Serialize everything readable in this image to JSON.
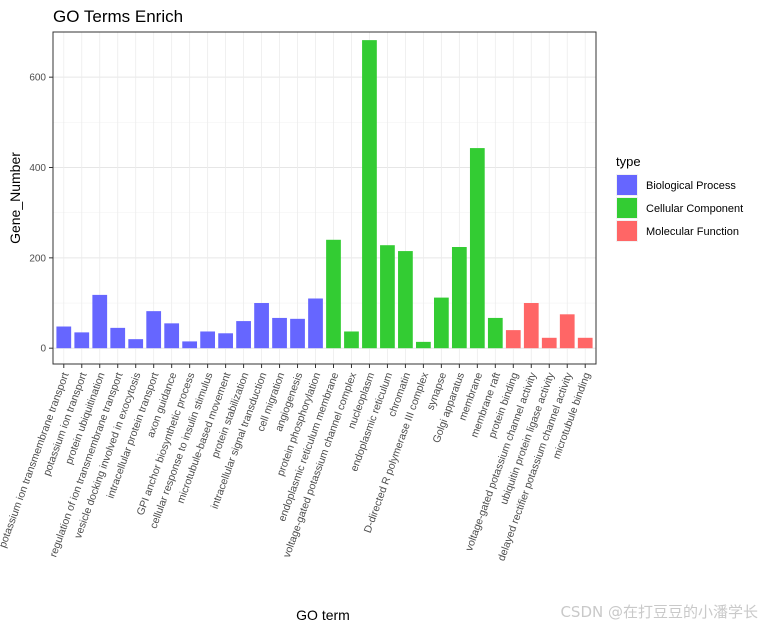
{
  "chart_data": {
    "type": "bar",
    "title": "GO Terms Enrich",
    "xlabel": "GO term",
    "ylabel": "Gene_Number",
    "ylim": [
      -35,
      700
    ],
    "yticks": [
      0,
      200,
      400,
      600
    ],
    "grid": true,
    "legend": {
      "title": "type",
      "position": "right",
      "items": [
        {
          "name": "Biological Process",
          "color": "#6666ff"
        },
        {
          "name": "Cellular Component",
          "color": "#33cc33"
        },
        {
          "name": "Molecular Function",
          "color": "#ff6666"
        }
      ]
    },
    "categories": [
      "potassium ion transmembrane transport",
      "potassium ion transport",
      "protein ubiquitination",
      "regulation of ion transmembrane transport",
      "vesicle docking involved in exocytosis",
      "intracellular protein transport",
      "axon guidance",
      "GPI anchor biosynthetic process",
      "cellular response to insulin stimulus",
      "microtubule-based movement",
      "protein stabilization",
      "intracellular signal transduction",
      "cell migration",
      "angiogenesis",
      "protein phosphorylation",
      "endoplasmic reticulum membrane",
      "voltage-gated potassium channel complex",
      "nucleoplasm",
      "endoplasmic reticulum",
      "chromatin",
      "DNA-directed RNA polymerase III complex",
      "synapse",
      "Golgi apparatus",
      "membrane",
      "membrane raft",
      "protein binding",
      "voltage-gated potassium channel activity",
      "ubiquitin protein ligase activity",
      "delayed rectifier potassium channel activity",
      "microtubule binding"
    ],
    "x_tick_labels": [
      "potassium ion transmembrane transport",
      "potassium ion transport",
      "protein ubiquitination",
      "regulation of ion transmembrane transport",
      "vesicle docking involved in exocytosis",
      "intracellular protein transport",
      "axon guidance",
      "GPI anchor biosynthetic process",
      "cellular response to insulin stimulus",
      "microtubule-based movement",
      "protein stabilization",
      "intracellular signal transduction",
      "cell migration",
      "angiogenesis",
      "protein phosphorylation",
      "endoplasmic reticulum membrane",
      "voltage-gated potassium channel complex",
      "nucleoplasm",
      "endoplasmic reticulum",
      "chromatin",
      "D-directed R polymerase III complex",
      "synapse",
      "Golgi apparatus",
      "membrane",
      "membrane raft",
      "protein binding",
      "voltage-gated potassium channel activity",
      "ubiquitin protein ligase activity",
      "delayed rectifier potassium channel activity",
      "microtubule binding"
    ],
    "values": [
      48,
      35,
      118,
      45,
      20,
      82,
      55,
      15,
      37,
      33,
      60,
      100,
      67,
      65,
      110,
      240,
      37,
      682,
      228,
      215,
      14,
      112,
      224,
      443,
      67,
      40,
      100,
      23,
      75,
      23
    ],
    "types": [
      "Biological Process",
      "Biological Process",
      "Biological Process",
      "Biological Process",
      "Biological Process",
      "Biological Process",
      "Biological Process",
      "Biological Process",
      "Biological Process",
      "Biological Process",
      "Biological Process",
      "Biological Process",
      "Biological Process",
      "Biological Process",
      "Biological Process",
      "Cellular Component",
      "Cellular Component",
      "Cellular Component",
      "Cellular Component",
      "Cellular Component",
      "Cellular Component",
      "Cellular Component",
      "Cellular Component",
      "Cellular Component",
      "Cellular Component",
      "Molecular Function",
      "Molecular Function",
      "Molecular Function",
      "Molecular Function",
      "Molecular Function"
    ]
  },
  "watermark": "CSDN @在打豆豆的小潘学长"
}
